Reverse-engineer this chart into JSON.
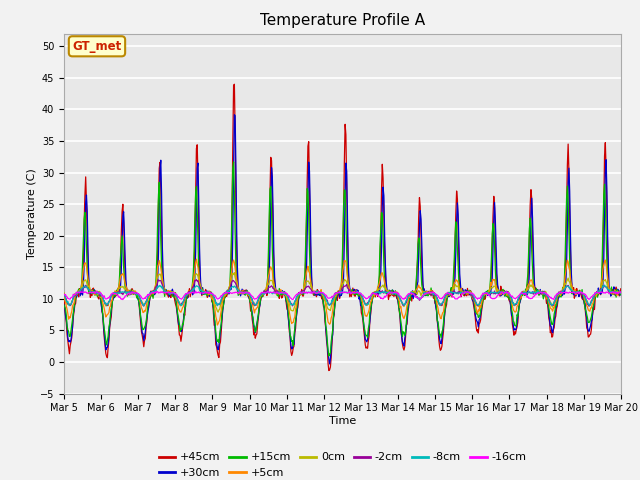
{
  "title": "Temperature Profile A",
  "xlabel": "Time",
  "ylabel": "Temperature (C)",
  "ylim": [
    -5,
    52
  ],
  "yticks": [
    -5,
    0,
    5,
    10,
    15,
    20,
    25,
    30,
    35,
    40,
    45,
    50
  ],
  "x_labels": [
    "Mar 5",
    "Mar 6",
    "Mar 7",
    "Mar 8",
    "Mar 9",
    "Mar 10",
    "Mar 11",
    "Mar 12",
    "Mar 13",
    "Mar 14",
    "Mar 15",
    "Mar 16",
    "Mar 17",
    "Mar 18",
    "Mar 19",
    "Mar 20"
  ],
  "annotation_text": "GT_met",
  "annotation_color": "#cc2200",
  "annotation_bg": "#ffffcc",
  "annotation_border": "#bb8800",
  "series_colors": {
    "+45cm": "#cc0000",
    "+30cm": "#0000cc",
    "+15cm": "#00bb00",
    "+5cm": "#ff8800",
    "0cm": "#bbbb00",
    "-2cm": "#990099",
    "-8cm": "#00bbbb",
    "-16cm": "#ff00ff"
  },
  "legend_order": [
    "+45cm",
    "+30cm",
    "+15cm",
    "+5cm",
    "0cm",
    "-2cm",
    "-8cm",
    "-16cm"
  ],
  "plot_bg": "#e8e8e8",
  "grid_color": "#ffffff",
  "fig_bg": "#f2f2f2",
  "title_fontsize": 11,
  "axis_fontsize": 8,
  "tick_fontsize": 7,
  "legend_fontsize": 8
}
